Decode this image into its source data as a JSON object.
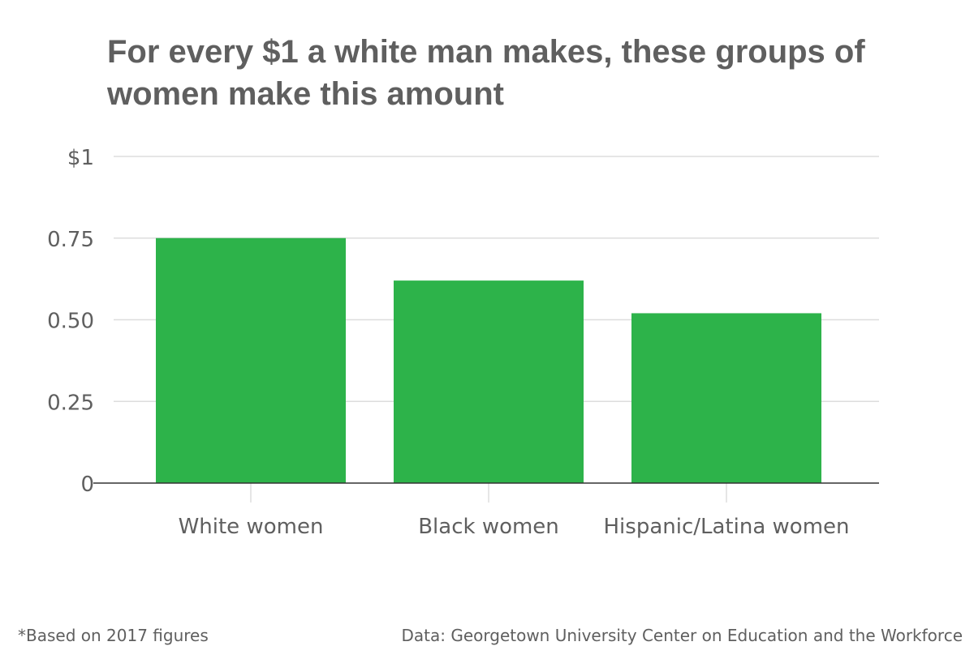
{
  "chart_data": {
    "type": "bar",
    "title": "For every $1 a white man makes, these groups of women make this amount",
    "categories": [
      "White women",
      "Black women",
      "Hispanic/Latina women"
    ],
    "values": [
      0.75,
      0.62,
      0.52
    ],
    "ylim": [
      0,
      1
    ],
    "yticks": [
      0,
      0.25,
      0.5,
      0.75,
      1
    ],
    "ytick_labels": [
      "0",
      "0.25",
      "0.50",
      "0.75",
      "$1"
    ],
    "xlabel": "",
    "ylabel": "",
    "grid": true,
    "bar_color": "#2db34a",
    "gridline_color": "#dddddd",
    "axis_color": "#333333",
    "text_color": "#5f5f5f"
  },
  "footnote": "*Based on 2017 figures",
  "source": "Data: Georgetown University Center on Education and the Workforce"
}
